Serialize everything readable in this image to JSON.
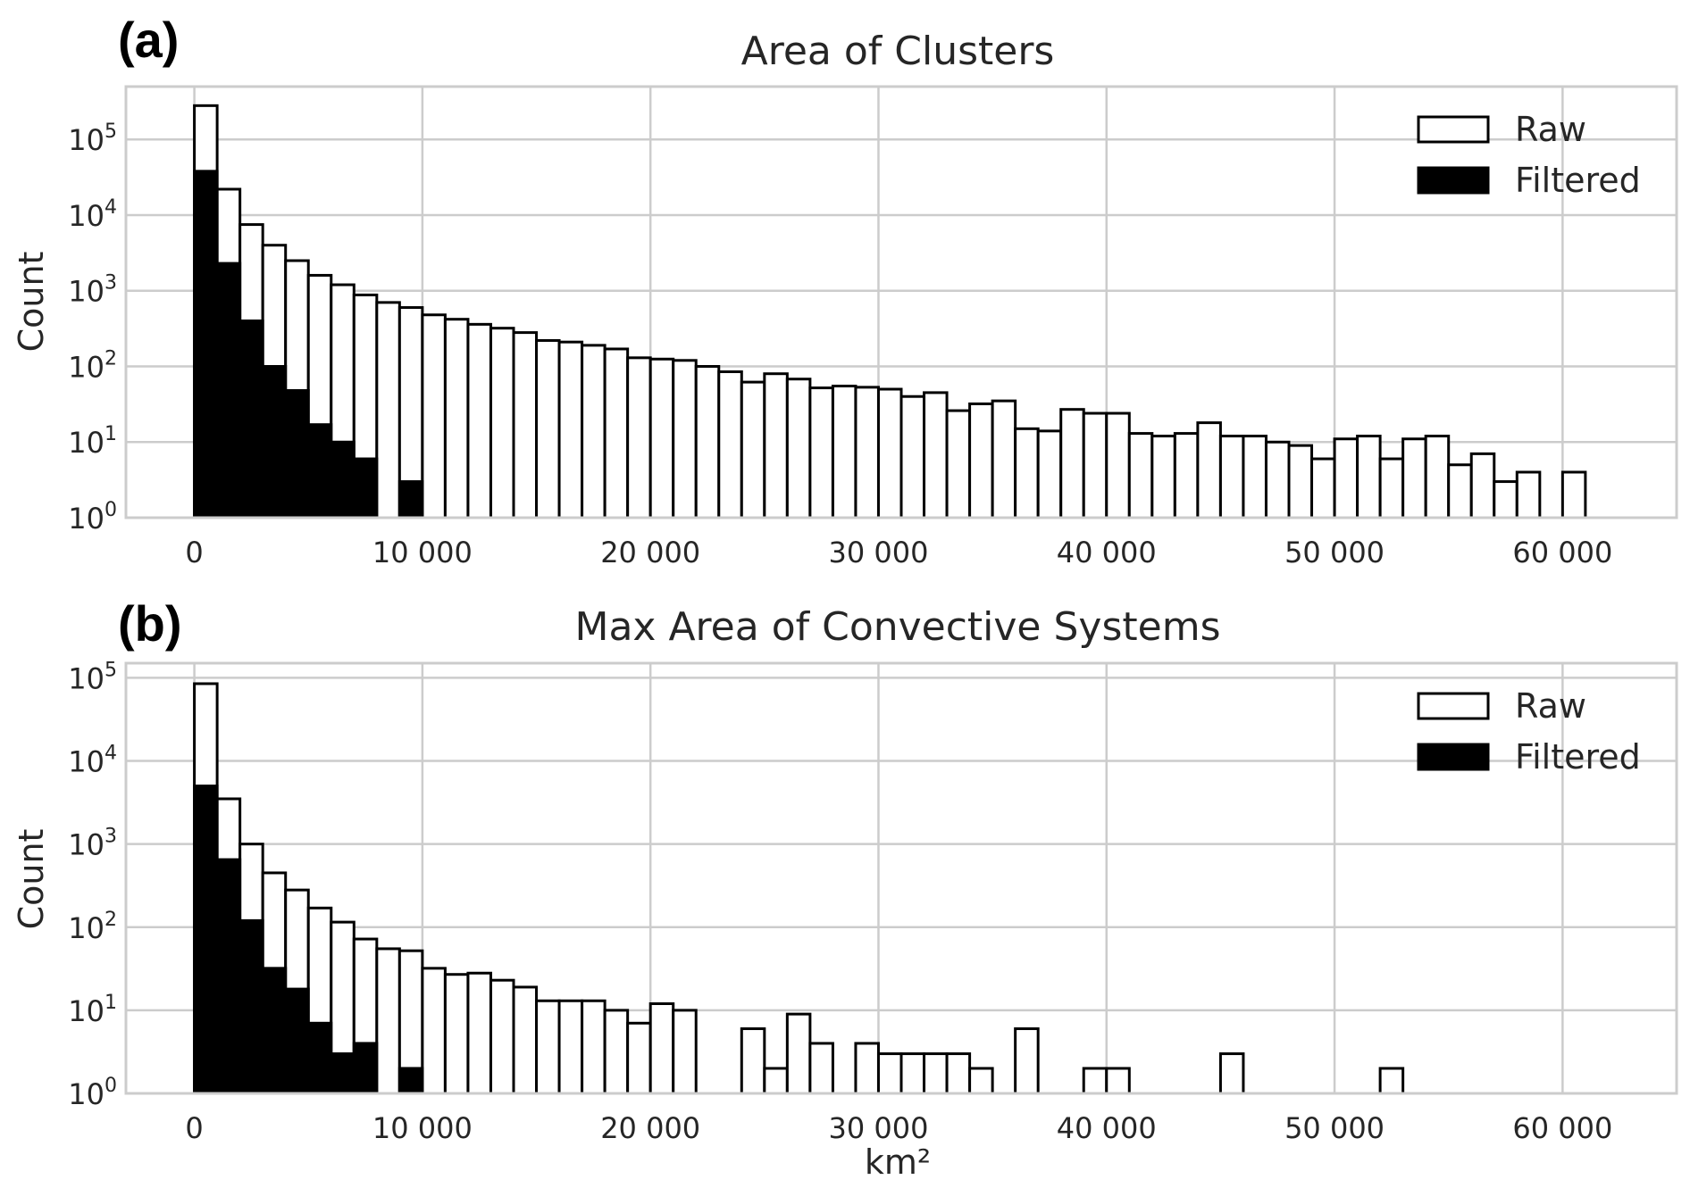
{
  "chart_data": [
    {
      "type": "bar",
      "panel_label": "(a)",
      "title": "Area of Clusters",
      "xlabel": "",
      "ylabel": "Count",
      "yscale": "log",
      "xlim": [
        -3000,
        65000
      ],
      "ylim": [
        1,
        500000
      ],
      "grid": true,
      "legend_position": "top-right",
      "bin_start": 0,
      "bin_width": 1000,
      "xticks": [
        0,
        10000,
        20000,
        30000,
        40000,
        50000,
        60000
      ],
      "xtick_labels": [
        "0",
        "10 000",
        "20 000",
        "30 000",
        "40 000",
        "50 000",
        "60 000"
      ],
      "yticks": [
        1,
        10,
        100,
        1000,
        10000,
        100000
      ],
      "ytick_labels": [
        {
          "base": "10",
          "exp": "0"
        },
        {
          "base": "10",
          "exp": "1"
        },
        {
          "base": "10",
          "exp": "2"
        },
        {
          "base": "10",
          "exp": "3"
        },
        {
          "base": "10",
          "exp": "4"
        },
        {
          "base": "10",
          "exp": "5"
        }
      ],
      "series": [
        {
          "name": "Raw",
          "style": "outline",
          "values": [
            280000,
            22000,
            7500,
            4000,
            2500,
            1600,
            1200,
            880,
            700,
            600,
            480,
            420,
            360,
            320,
            280,
            220,
            210,
            190,
            170,
            130,
            125,
            120,
            100,
            85,
            62,
            80,
            68,
            52,
            55,
            53,
            50,
            40,
            45,
            26,
            32,
            35,
            15,
            14,
            27,
            24,
            24,
            13,
            12,
            13,
            18,
            12,
            12,
            10,
            9,
            6,
            11,
            12,
            6,
            11,
            12,
            5,
            7,
            3,
            4,
            0,
            4
          ]
        },
        {
          "name": "Filtered",
          "style": "filled",
          "values": [
            38000,
            2300,
            400,
            100,
            48,
            17,
            10,
            6,
            0,
            3
          ]
        }
      ]
    },
    {
      "type": "bar",
      "panel_label": "(b)",
      "title": "Max Area of Convective Systems",
      "xlabel": "km²",
      "ylabel": "Count",
      "yscale": "log",
      "xlim": [
        -3000,
        65000
      ],
      "ylim": [
        1,
        150000
      ],
      "grid": true,
      "legend_position": "top-right",
      "bin_start": 0,
      "bin_width": 1000,
      "xticks": [
        0,
        10000,
        20000,
        30000,
        40000,
        50000,
        60000
      ],
      "xtick_labels": [
        "0",
        "10 000",
        "20 000",
        "30 000",
        "40 000",
        "50 000",
        "60 000"
      ],
      "yticks": [
        1,
        10,
        100,
        1000,
        10000,
        100000
      ],
      "ytick_labels": [
        {
          "base": "10",
          "exp": "0"
        },
        {
          "base": "10",
          "exp": "1"
        },
        {
          "base": "10",
          "exp": "2"
        },
        {
          "base": "10",
          "exp": "3"
        },
        {
          "base": "10",
          "exp": "4"
        },
        {
          "base": "10",
          "exp": "5"
        }
      ],
      "series": [
        {
          "name": "Raw",
          "style": "outline",
          "values": [
            85000,
            3500,
            1000,
            450,
            280,
            170,
            115,
            72,
            55,
            52,
            32,
            27,
            28,
            23,
            19,
            13,
            13,
            13,
            10,
            7,
            12,
            10,
            0,
            0,
            6,
            2,
            9,
            4,
            0,
            4,
            3,
            3,
            3,
            3,
            2,
            0,
            6,
            0,
            0,
            2,
            2,
            0,
            0,
            0,
            0,
            3,
            0,
            0,
            0,
            0,
            0,
            0,
            2
          ]
        },
        {
          "name": "Filtered",
          "style": "filled",
          "values": [
            5000,
            650,
            120,
            32,
            18,
            7,
            3,
            4,
            0,
            2
          ]
        }
      ]
    }
  ]
}
